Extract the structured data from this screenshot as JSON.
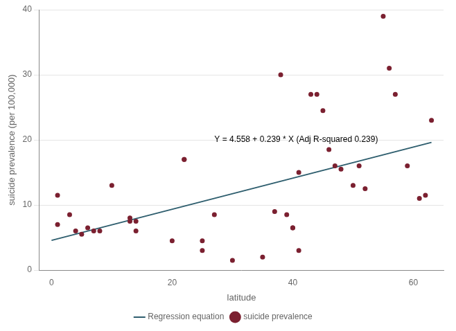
{
  "chart_data": {
    "type": "scatter",
    "xlabel": "latitude",
    "ylabel": "suicide prevalence (per 100,000)",
    "xlim": [
      -2,
      65
    ],
    "ylim": [
      0,
      40
    ],
    "xticks": [
      0,
      20,
      40,
      60
    ],
    "yticks": [
      0,
      10,
      20,
      30,
      40
    ],
    "grid": "y",
    "legend": "bottom",
    "series": [
      {
        "name": "suicide prevalence",
        "type": "scatter",
        "color": "#7B2030",
        "marker": "circle",
        "x": [
          1,
          1,
          3,
          4,
          5,
          6,
          7,
          8,
          10,
          13,
          13,
          14,
          14,
          20,
          22,
          22,
          25,
          25,
          27,
          30,
          35,
          37,
          38,
          39,
          40,
          40,
          41,
          41,
          43,
          44,
          45,
          46,
          47,
          48,
          50,
          51,
          52,
          55,
          56,
          57,
          59,
          61,
          62,
          63
        ],
        "values": [
          11.5,
          7,
          8.5,
          6,
          5.5,
          6.5,
          6,
          6,
          13,
          8,
          7.5,
          6,
          7.5,
          4.5,
          17,
          17,
          3,
          4.5,
          8.5,
          1.5,
          2,
          9,
          30,
          8.5,
          6.5,
          6.5,
          3,
          15,
          27,
          27,
          24.5,
          18.5,
          16,
          15.5,
          13,
          16,
          12.5,
          39,
          31,
          27,
          16,
          11,
          11.5,
          23
        ]
      },
      {
        "name": "Regression equation",
        "type": "line",
        "color": "#2E5E6E",
        "line_style": "solid",
        "x": [
          0,
          63
        ],
        "values": [
          4.558,
          19.615
        ]
      }
    ],
    "annotations": [
      {
        "text": "Y = 4.558 + 0.239 * X (Adj R-squared 0.239)",
        "x": 27,
        "y": 20
      }
    ]
  }
}
